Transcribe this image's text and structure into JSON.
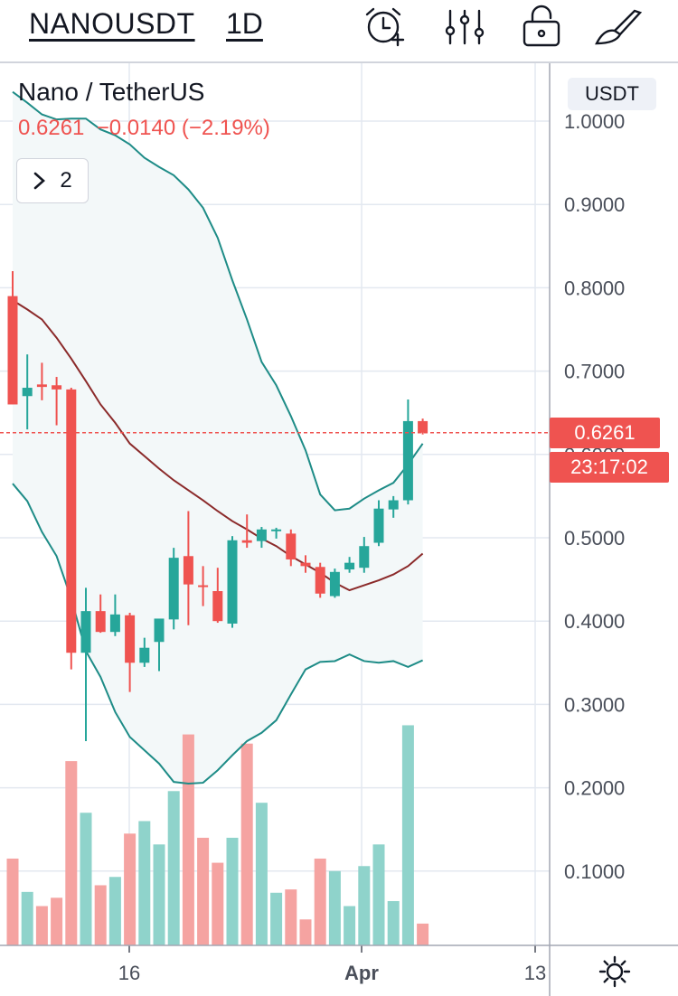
{
  "toolbar": {
    "symbol": "NANOUSDT",
    "interval": "1D",
    "icons": [
      "alarm-clock-add-icon",
      "indicator-sliders-icon",
      "lock-icon",
      "drawing-brush-icon"
    ]
  },
  "legend": {
    "title": "Nano / TetherUS",
    "values": "0.6261  −0.0140 (−2.19%)",
    "toggle_count": "2"
  },
  "price_scale": {
    "currency": "USDT",
    "current_price_label": "0.6261",
    "countdown": "23:17:02"
  },
  "colors": {
    "up": "#26a69a",
    "down": "#ef5350",
    "volume_up": "#8fd3cb",
    "volume_down": "#f5a3a1",
    "band": "#1e8c87",
    "basis": "#8b2a2a",
    "band_fill": "#f3f8f9"
  },
  "chart_data": {
    "type": "candlestick",
    "title": "Nano / TetherUS",
    "interval": "1D",
    "y_ticks": [
      "1.0000",
      "0.9000",
      "0.8000",
      "0.7000",
      "0.6000",
      "0.5000",
      "0.4000",
      "0.3000",
      "0.2000",
      "0.1000"
    ],
    "ylim": [
      0.1,
      1.0
    ],
    "x_ticks": [
      "16",
      "Apr",
      "13"
    ],
    "last_price": 0.6261,
    "change": -0.014,
    "change_pct": -2.19,
    "candles": [
      {
        "o": 0.79,
        "h": 0.82,
        "l": 0.66,
        "c": 0.66
      },
      {
        "o": 0.67,
        "h": 0.72,
        "l": 0.63,
        "c": 0.68
      },
      {
        "o": 0.684,
        "h": 0.71,
        "l": 0.665,
        "c": 0.681
      },
      {
        "o": 0.683,
        "h": 0.693,
        "l": 0.635,
        "c": 0.678
      },
      {
        "o": 0.678,
        "h": 0.68,
        "l": 0.342,
        "c": 0.362
      },
      {
        "o": 0.362,
        "h": 0.44,
        "l": 0.256,
        "c": 0.412
      },
      {
        "o": 0.412,
        "h": 0.432,
        "l": 0.386,
        "c": 0.387
      },
      {
        "o": 0.387,
        "h": 0.432,
        "l": 0.382,
        "c": 0.408
      },
      {
        "o": 0.407,
        "h": 0.41,
        "l": 0.315,
        "c": 0.35
      },
      {
        "o": 0.35,
        "h": 0.38,
        "l": 0.345,
        "c": 0.368
      },
      {
        "o": 0.375,
        "h": 0.4,
        "l": 0.34,
        "c": 0.403
      },
      {
        "o": 0.402,
        "h": 0.488,
        "l": 0.39,
        "c": 0.476
      },
      {
        "o": 0.478,
        "h": 0.532,
        "l": 0.395,
        "c": 0.444
      },
      {
        "o": 0.443,
        "h": 0.466,
        "l": 0.418,
        "c": 0.441
      },
      {
        "o": 0.436,
        "h": 0.464,
        "l": 0.398,
        "c": 0.4
      },
      {
        "o": 0.397,
        "h": 0.502,
        "l": 0.392,
        "c": 0.497
      },
      {
        "o": 0.497,
        "h": 0.528,
        "l": 0.488,
        "c": 0.494
      },
      {
        "o": 0.496,
        "h": 0.513,
        "l": 0.488,
        "c": 0.51
      },
      {
        "o": 0.51,
        "h": 0.512,
        "l": 0.499,
        "c": 0.51
      },
      {
        "o": 0.505,
        "h": 0.51,
        "l": 0.466,
        "c": 0.474
      },
      {
        "o": 0.47,
        "h": 0.479,
        "l": 0.458,
        "c": 0.466
      },
      {
        "o": 0.465,
        "h": 0.47,
        "l": 0.428,
        "c": 0.433
      },
      {
        "o": 0.43,
        "h": 0.463,
        "l": 0.428,
        "c": 0.459
      },
      {
        "o": 0.462,
        "h": 0.477,
        "l": 0.458,
        "c": 0.47
      },
      {
        "o": 0.464,
        "h": 0.501,
        "l": 0.458,
        "c": 0.49
      },
      {
        "o": 0.494,
        "h": 0.545,
        "l": 0.49,
        "c": 0.535
      },
      {
        "o": 0.534,
        "h": 0.55,
        "l": 0.524,
        "c": 0.545
      },
      {
        "o": 0.545,
        "h": 0.666,
        "l": 0.54,
        "c": 0.64
      },
      {
        "o": 0.64,
        "h": 0.643,
        "l": 0.624,
        "c": 0.6261
      }
    ],
    "volume_max_scaled": 0.275,
    "volumes": [
      0.115,
      0.075,
      0.058,
      0.068,
      0.232,
      0.17,
      0.083,
      0.093,
      0.145,
      0.16,
      0.132,
      0.196,
      0.264,
      0.14,
      0.11,
      0.14,
      0.253,
      0.182,
      0.074,
      0.078,
      0.042,
      0.115,
      0.1,
      0.058,
      0.106,
      0.132,
      0.064,
      0.275,
      0.037
    ],
    "bollinger": {
      "basis": [
        0.785,
        0.774,
        0.762,
        0.74,
        0.715,
        0.688,
        0.66,
        0.638,
        0.613,
        0.598,
        0.583,
        0.569,
        0.557,
        0.545,
        0.532,
        0.52,
        0.51,
        0.499,
        0.49,
        0.478,
        0.468,
        0.458,
        0.446,
        0.437,
        0.443,
        0.449,
        0.456,
        0.466,
        0.481
      ],
      "upper": [
        1.035,
        1.022,
        1.008,
        1.002,
        1.003,
        1.003,
        0.99,
        0.983,
        0.972,
        0.956,
        0.945,
        0.935,
        0.918,
        0.896,
        0.86,
        0.809,
        0.762,
        0.711,
        0.683,
        0.646,
        0.605,
        0.552,
        0.533,
        0.535,
        0.547,
        0.557,
        0.566,
        0.588,
        0.613
      ],
      "lower": [
        0.565,
        0.544,
        0.507,
        0.478,
        0.427,
        0.364,
        0.333,
        0.291,
        0.261,
        0.245,
        0.229,
        0.207,
        0.205,
        0.206,
        0.221,
        0.239,
        0.256,
        0.266,
        0.281,
        0.312,
        0.342,
        0.351,
        0.352,
        0.36,
        0.352,
        0.35,
        0.352,
        0.345,
        0.353
      ]
    }
  }
}
